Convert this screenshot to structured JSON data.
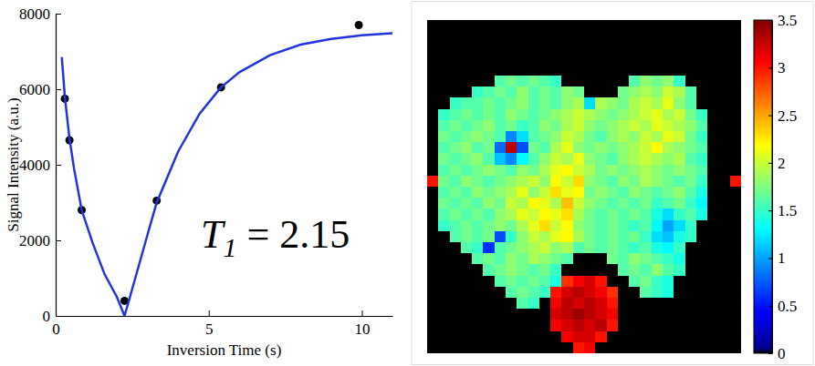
{
  "chart_data": [
    {
      "type": "scatter",
      "xlabel": "Inversion Time (s)",
      "ylabel": "Signal Intensity (a.u.)",
      "xlim": [
        0,
        11
      ],
      "ylim": [
        0,
        8000
      ],
      "xticks": [
        0,
        5,
        10
      ],
      "yticks": [
        0,
        2000,
        4000,
        6000,
        8000
      ],
      "series": [
        {
          "type": "scatter",
          "color": "#000000",
          "marker": "circle",
          "x": [
            0.3,
            0.45,
            0.85,
            2.25,
            3.3,
            5.4,
            9.9
          ],
          "values": [
            5750,
            4650,
            2800,
            400,
            3050,
            6050,
            7700
          ]
        },
        {
          "type": "line",
          "color": "#2233dd",
          "line_style": "solid",
          "x": [
            0.2,
            0.3,
            0.45,
            0.6,
            0.85,
            1.2,
            1.6,
            2.0,
            2.25,
            2.6,
            3.0,
            3.3,
            4.0,
            4.7,
            5.4,
            6.0,
            7.0,
            8.0,
            9.0,
            10.0,
            11.0
          ],
          "values": [
            6850,
            5800,
            4700,
            3900,
            2800,
            1950,
            1100,
            500,
            0,
            1000,
            2150,
            3000,
            4350,
            5350,
            6050,
            6450,
            6900,
            7180,
            7330,
            7430,
            7480
          ]
        }
      ],
      "annotation": {
        "base": "T",
        "subscript": "1",
        "text": " = 2.15"
      }
    },
    {
      "type": "heatmap",
      "color": "jet",
      "tick_labels": false,
      "colorbar": {
        "range": [
          0,
          3.5
        ],
        "ticks": [
          0,
          0.5,
          1,
          1.5,
          2,
          2.5,
          3,
          3.5
        ]
      },
      "cells": [
        [
          0,
          0,
          0,
          0,
          0,
          0,
          0,
          0,
          0,
          0,
          0,
          0,
          0,
          0,
          0,
          0,
          0,
          0,
          0,
          0,
          0,
          0,
          0,
          0,
          0,
          0,
          0,
          0
        ],
        [
          0,
          0,
          0,
          0,
          0,
          0,
          0,
          0,
          0,
          0,
          0,
          0,
          0,
          0,
          0,
          0,
          0,
          0,
          0,
          0,
          0,
          0,
          0,
          0,
          0,
          0,
          0,
          0
        ],
        [
          0,
          0,
          0,
          0,
          0,
          0,
          0,
          0,
          0,
          0,
          0,
          0,
          0,
          0,
          0,
          0,
          0,
          0,
          0,
          0,
          0,
          0,
          0,
          0,
          0,
          0,
          0,
          0
        ],
        [
          0,
          0,
          0,
          0,
          0,
          0,
          0,
          0,
          0,
          0,
          0,
          0,
          0,
          0,
          0,
          0,
          0,
          0,
          0,
          0,
          0,
          0,
          0,
          0,
          0,
          0,
          0,
          0
        ],
        [
          0,
          0,
          0,
          0,
          0,
          0,
          0,
          0,
          0,
          0,
          0,
          0,
          0,
          0,
          0,
          0,
          0,
          0,
          0,
          0,
          0,
          0,
          0,
          0,
          0,
          0,
          0,
          0
        ],
        [
          0,
          0,
          0,
          0,
          0,
          0,
          1.6,
          1.7,
          1.6,
          1.7,
          1.6,
          1.5,
          0,
          0,
          0,
          0,
          0,
          0,
          1.6,
          1.8,
          1.7,
          1.8,
          1.5,
          0,
          0,
          0,
          0,
          0
        ],
        [
          0,
          0,
          0,
          0,
          1.5,
          1.6,
          1.7,
          1.6,
          1.8,
          1.6,
          1.7,
          1.6,
          1.8,
          1.7,
          0,
          0,
          0,
          1.7,
          1.8,
          1.9,
          1.8,
          2.0,
          1.9,
          1.6,
          0,
          0,
          0,
          0
        ],
        [
          0,
          0,
          1.5,
          1.6,
          1.6,
          1.7,
          1.6,
          1.7,
          1.8,
          1.6,
          1.7,
          1.6,
          1.8,
          1.9,
          1.2,
          1.9,
          1.8,
          1.7,
          1.9,
          2.0,
          1.9,
          2.1,
          1.8,
          1.6,
          0,
          0,
          0,
          0
        ],
        [
          0,
          1.5,
          1.6,
          1.7,
          1.6,
          1.7,
          1.6,
          1.8,
          1.7,
          1.6,
          1.7,
          1.8,
          1.9,
          2.0,
          1.9,
          1.8,
          1.7,
          1.8,
          1.9,
          2.0,
          2.1,
          1.9,
          2.0,
          1.7,
          1.5,
          0,
          0,
          0
        ],
        [
          0,
          1.6,
          1.7,
          1.6,
          1.7,
          1.8,
          1.6,
          1.7,
          1.5,
          1.6,
          1.8,
          1.7,
          1.9,
          2.0,
          1.8,
          1.7,
          1.8,
          1.9,
          2.0,
          1.9,
          2.1,
          2.0,
          1.9,
          1.8,
          1.6,
          0,
          0,
          0
        ],
        [
          0,
          1.7,
          1.6,
          1.7,
          1.8,
          1.7,
          1.6,
          0.9,
          1.2,
          1.6,
          1.7,
          1.8,
          2.0,
          1.9,
          1.7,
          1.6,
          1.8,
          1.9,
          1.8,
          2.0,
          1.9,
          2.1,
          2.0,
          1.7,
          1.5,
          0,
          0,
          0
        ],
        [
          0,
          1.6,
          1.7,
          1.8,
          1.6,
          1.7,
          0.8,
          3.3,
          0.7,
          1.7,
          1.6,
          1.9,
          2.1,
          1.8,
          1.7,
          1.8,
          1.7,
          1.8,
          1.9,
          2.0,
          2.2,
          1.9,
          1.8,
          1.7,
          1.6,
          0,
          0,
          0
        ],
        [
          0,
          1.7,
          1.6,
          1.7,
          1.8,
          1.6,
          1.1,
          0.9,
          1.3,
          1.6,
          1.8,
          2.0,
          1.9,
          2.1,
          1.8,
          1.7,
          1.6,
          1.8,
          1.9,
          2.0,
          1.9,
          1.8,
          1.9,
          1.6,
          1.5,
          0,
          0,
          0
        ],
        [
          0,
          1.6,
          1.7,
          1.6,
          1.7,
          1.8,
          1.7,
          1.6,
          1.8,
          1.7,
          1.9,
          2.1,
          2.2,
          2.0,
          1.9,
          1.7,
          1.8,
          1.7,
          1.8,
          1.9,
          1.8,
          1.7,
          1.8,
          1.7,
          1.6,
          0,
          0,
          0
        ],
        [
          3.0,
          1.7,
          1.6,
          1.8,
          1.7,
          1.6,
          1.7,
          1.8,
          1.9,
          2.0,
          1.8,
          2.2,
          2.0,
          2.3,
          1.8,
          1.7,
          1.6,
          1.8,
          1.7,
          1.9,
          1.8,
          1.7,
          1.6,
          1.7,
          1.5,
          0,
          0,
          3.0
        ],
        [
          0,
          1.6,
          1.7,
          1.6,
          1.8,
          1.7,
          1.8,
          1.9,
          2.1,
          1.8,
          2.0,
          2.3,
          2.1,
          2.2,
          1.7,
          1.8,
          1.7,
          1.6,
          1.8,
          1.7,
          1.6,
          1.7,
          1.8,
          1.6,
          1.4,
          0,
          0,
          0
        ],
        [
          0,
          1.7,
          1.6,
          1.7,
          1.6,
          1.8,
          1.7,
          2.0,
          1.9,
          2.2,
          2.1,
          1.9,
          2.4,
          2.0,
          1.8,
          1.7,
          1.6,
          1.7,
          1.6,
          1.7,
          1.5,
          1.6,
          1.7,
          1.5,
          1.3,
          0,
          0,
          0
        ],
        [
          0,
          1.6,
          1.7,
          1.6,
          1.7,
          1.6,
          1.8,
          1.9,
          2.1,
          2.0,
          2.2,
          2.1,
          2.3,
          1.9,
          1.7,
          1.6,
          1.7,
          1.6,
          1.7,
          1.6,
          1.4,
          1.2,
          1.5,
          1.6,
          1.4,
          0,
          0,
          0
        ],
        [
          0,
          1.5,
          1.6,
          1.7,
          1.6,
          1.7,
          1.8,
          1.7,
          1.9,
          2.1,
          2.3,
          2.0,
          2.2,
          1.8,
          1.7,
          1.6,
          1.7,
          1.6,
          1.5,
          1.6,
          1.3,
          1.0,
          1.2,
          1.5,
          0,
          0,
          0,
          0
        ],
        [
          0,
          0,
          1.6,
          1.7,
          1.6,
          1.7,
          0.7,
          1.5,
          1.8,
          2.0,
          1.9,
          2.1,
          2.2,
          1.9,
          1.7,
          1.6,
          1.7,
          1.6,
          1.7,
          1.5,
          1.2,
          1.1,
          1.4,
          1.5,
          0,
          0,
          0,
          0
        ],
        [
          0,
          0,
          0,
          1.6,
          1.5,
          0.6,
          1.6,
          1.7,
          1.8,
          1.9,
          2.0,
          1.8,
          1.9,
          1.6,
          1.7,
          1.6,
          1.7,
          1.6,
          1.5,
          1.6,
          1.4,
          1.3,
          1.5,
          0,
          0,
          0,
          0,
          0
        ],
        [
          0,
          0,
          0,
          0,
          1.6,
          1.7,
          1.6,
          1.8,
          1.7,
          1.9,
          1.8,
          1.7,
          1.6,
          0,
          0,
          0,
          1.7,
          1.6,
          1.8,
          1.7,
          1.6,
          1.5,
          1.4,
          0,
          0,
          0,
          0,
          0
        ],
        [
          0,
          0,
          0,
          0,
          0,
          1.6,
          1.7,
          1.8,
          1.7,
          1.6,
          1.7,
          1.5,
          0,
          0,
          0,
          0,
          0,
          1.6,
          1.7,
          1.6,
          1.8,
          1.6,
          1.5,
          0,
          0,
          0,
          0,
          0
        ],
        [
          0,
          0,
          0,
          0,
          0,
          0,
          1.6,
          1.7,
          1.6,
          1.7,
          1.6,
          1.4,
          2.9,
          3.1,
          3.2,
          3.0,
          0,
          0,
          1.6,
          1.7,
          1.5,
          1.4,
          0,
          0,
          0,
          0,
          0,
          0
        ],
        [
          0,
          0,
          0,
          0,
          0,
          0,
          0,
          1.6,
          1.7,
          1.6,
          1.5,
          3.0,
          3.2,
          3.3,
          3.2,
          3.1,
          2.9,
          0,
          0,
          1.6,
          1.5,
          1.4,
          0,
          0,
          0,
          0,
          0,
          0
        ],
        [
          0,
          0,
          0,
          0,
          0,
          0,
          0,
          0,
          1.6,
          1.5,
          0,
          3.1,
          3.3,
          3.2,
          3.3,
          3.2,
          3.0,
          0,
          0,
          0,
          0,
          0,
          0,
          0,
          0,
          0,
          0,
          0
        ],
        [
          0,
          0,
          0,
          0,
          0,
          0,
          0,
          0,
          0,
          0,
          0,
          3.2,
          3.3,
          3.4,
          3.3,
          3.2,
          3.1,
          0,
          0,
          0,
          0,
          0,
          0,
          0,
          0,
          0,
          0,
          0
        ],
        [
          0,
          0,
          0,
          0,
          0,
          0,
          0,
          0,
          0,
          0,
          0,
          3.1,
          3.2,
          3.3,
          3.2,
          3.3,
          3.0,
          0,
          0,
          0,
          0,
          0,
          0,
          0,
          0,
          0,
          0,
          0
        ],
        [
          0,
          0,
          0,
          0,
          0,
          0,
          0,
          0,
          0,
          0,
          0,
          0,
          3.1,
          3.2,
          3.2,
          3.0,
          0,
          0,
          0,
          0,
          0,
          0,
          0,
          0,
          0,
          0,
          0,
          0
        ],
        [
          0,
          0,
          0,
          0,
          0,
          0,
          0,
          0,
          0,
          0,
          0,
          0,
          0,
          3.0,
          3.1,
          0,
          0,
          0,
          0,
          0,
          0,
          0,
          0,
          0,
          0,
          0,
          0,
          0
        ]
      ]
    }
  ]
}
